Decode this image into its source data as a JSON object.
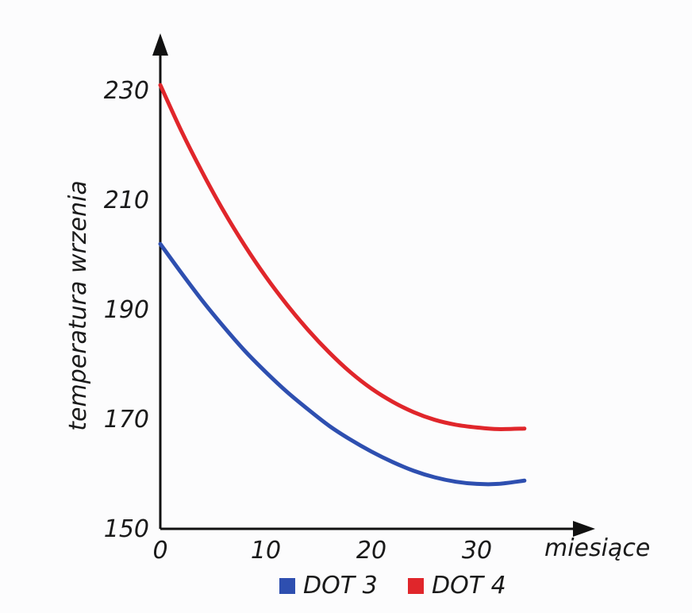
{
  "chart_data": {
    "type": "line",
    "title": "",
    "xlabel": "miesiące",
    "ylabel": "temperatura wrzenia",
    "xlim": [
      0,
      35
    ],
    "ylim": [
      150,
      235
    ],
    "x_ticks": [
      0,
      10,
      20,
      30
    ],
    "y_ticks": [
      150,
      170,
      190,
      210,
      230
    ],
    "grid": false,
    "legend_position": "bottom",
    "series": [
      {
        "name": "DOT 3",
        "color": "#2e4fb0",
        "x": [
          0,
          2,
          4,
          6,
          8,
          10,
          12,
          14,
          16,
          18,
          20,
          22,
          24,
          26,
          28,
          30,
          32,
          34.5
        ],
        "y": [
          202,
          196.7,
          191.6,
          186.9,
          182.5,
          178.6,
          175.0,
          171.8,
          168.8,
          166.3,
          164.1,
          162.2,
          160.6,
          159.4,
          158.6,
          158.2,
          158.2,
          158.8
        ]
      },
      {
        "name": "DOT 4",
        "color": "#e0262b",
        "x": [
          0,
          2,
          4,
          6,
          8,
          10,
          12,
          14,
          16,
          18,
          20,
          22,
          24,
          26,
          28,
          30,
          32,
          34.5
        ],
        "y": [
          231,
          222.6,
          215.0,
          208.0,
          201.7,
          196.0,
          190.9,
          186.3,
          182.2,
          178.6,
          175.6,
          173.2,
          171.3,
          169.9,
          169.0,
          168.5,
          168.2,
          168.3
        ]
      }
    ]
  }
}
